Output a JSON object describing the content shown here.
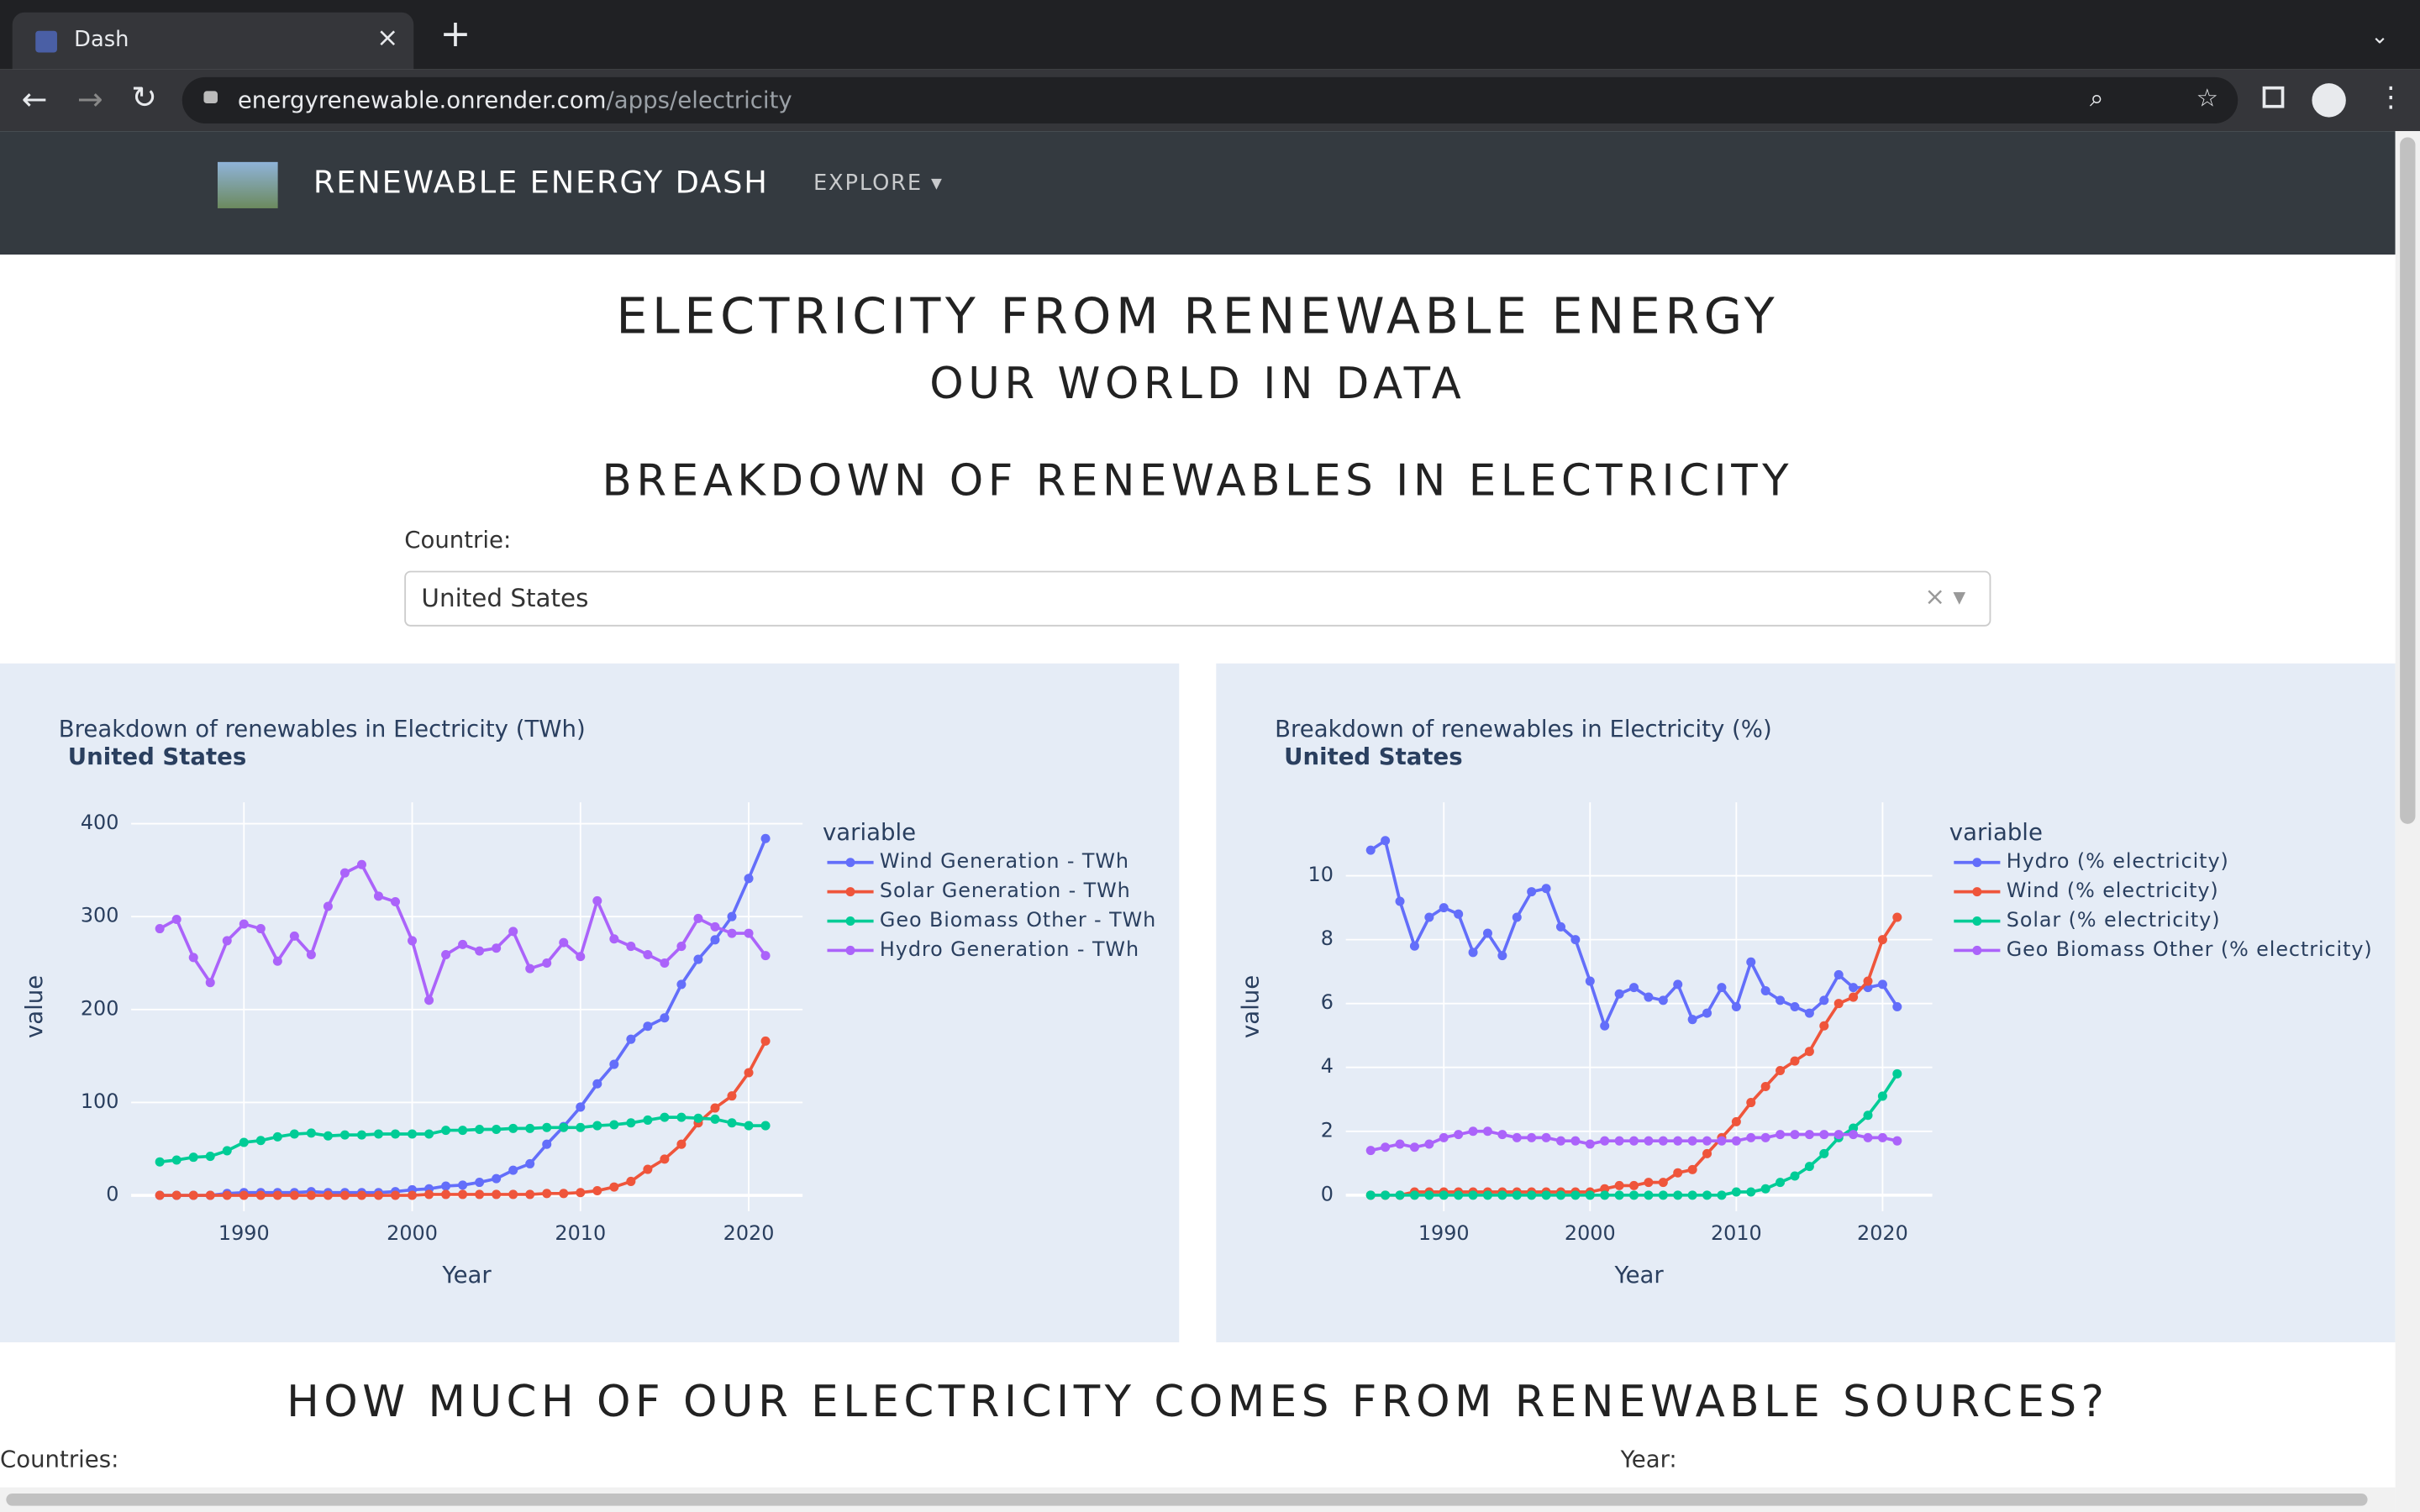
{
  "browser": {
    "tab_title": "Dash",
    "url_host": "energyrenewable.onrender.com",
    "url_path": "/apps/electricity"
  },
  "navbar": {
    "brand": "RENEWABLE ENERGY DASH",
    "menu": "EXPLORE"
  },
  "page": {
    "title": "ELECTRICITY FROM RENEWABLE ENERGY",
    "subtitle": "OUR WORLD IN DATA",
    "section_title": "BREAKDOWN OF RENEWABLES IN ELECTRICITY",
    "dropdown_label": "Countrie:",
    "dropdown_value": "United States",
    "section2_title": "HOW MUCH OF OUR ELECTRICITY COMES FROM RENEWABLE SOURCES?",
    "countries_label": "Countries:",
    "year_label": "Year:"
  },
  "chart_data": [
    {
      "type": "line",
      "title": "Breakdown of renewables in Electricity (TWh)",
      "subtitle": "United States",
      "x_label": "Year",
      "y_label": "value",
      "legend_title": "variable",
      "x": [
        1985,
        1986,
        1987,
        1988,
        1989,
        1990,
        1991,
        1992,
        1993,
        1994,
        1995,
        1996,
        1997,
        1998,
        1999,
        2000,
        2001,
        2002,
        2003,
        2004,
        2005,
        2006,
        2007,
        2008,
        2009,
        2010,
        2011,
        2012,
        2013,
        2014,
        2015,
        2016,
        2017,
        2018,
        2019,
        2020,
        2021
      ],
      "xlim": [
        1983.3,
        2023.2
      ],
      "xticks": [
        1990,
        2000,
        2010,
        2020
      ],
      "ylim": [
        -17,
        423
      ],
      "yticks": [
        0,
        100,
        200,
        300,
        400
      ],
      "grid": true,
      "series": [
        {
          "name": "Wind Generation - TWh",
          "color": "#636efa",
          "values": [
            0,
            0,
            0,
            0,
            2,
            3,
            3,
            3,
            3,
            4,
            3,
            3,
            3,
            3,
            4,
            6,
            7,
            10,
            11,
            14,
            18,
            27,
            34,
            55,
            74,
            95,
            120,
            141,
            168,
            182,
            191,
            227,
            254,
            275,
            300,
            341,
            384
          ]
        },
        {
          "name": "Solar Generation - TWh",
          "color": "#ef553b",
          "values": [
            0,
            0,
            0,
            0,
            0,
            0,
            0,
            0,
            0,
            0,
            0,
            0,
            0,
            0,
            0,
            0,
            1,
            1,
            1,
            1,
            1,
            1,
            1,
            2,
            2,
            3,
            5,
            9,
            15,
            28,
            39,
            55,
            78,
            94,
            107,
            132,
            166
          ]
        },
        {
          "name": "Geo Biomass Other - TWh",
          "color": "#00cc96",
          "values": [
            36,
            38,
            41,
            42,
            48,
            57,
            59,
            63,
            66,
            67,
            64,
            65,
            65,
            66,
            66,
            66,
            66,
            70,
            70,
            71,
            71,
            72,
            72,
            73,
            73,
            73,
            75,
            76,
            78,
            81,
            84,
            84,
            83,
            82,
            78,
            75,
            75
          ]
        },
        {
          "name": "Hydro Generation - TWh",
          "color": "#ab63fa",
          "values": [
            287,
            297,
            256,
            229,
            274,
            292,
            287,
            252,
            279,
            259,
            311,
            347,
            356,
            322,
            316,
            274,
            210,
            259,
            270,
            263,
            266,
            284,
            244,
            250,
            272,
            257,
            317,
            276,
            268,
            259,
            250,
            268,
            298,
            289,
            282,
            282,
            258
          ]
        }
      ]
    },
    {
      "type": "line",
      "title": "Breakdown of renewables in Electricity (%)",
      "subtitle": "United States",
      "x_label": "Year",
      "y_label": "value",
      "legend_title": "variable",
      "x": [
        1985,
        1986,
        1987,
        1988,
        1989,
        1990,
        1991,
        1992,
        1993,
        1994,
        1995,
        1996,
        1997,
        1998,
        1999,
        2000,
        2001,
        2002,
        2003,
        2004,
        2005,
        2006,
        2007,
        2008,
        2009,
        2010,
        2011,
        2012,
        2013,
        2014,
        2015,
        2016,
        2017,
        2018,
        2019,
        2020,
        2021
      ],
      "xlim": [
        1983.3,
        2023.4
      ],
      "xticks": [
        1990,
        2000,
        2010,
        2020
      ],
      "ylim": [
        -0.5,
        12.3
      ],
      "yticks": [
        0,
        2,
        4,
        6,
        8,
        10
      ],
      "grid": true,
      "series": [
        {
          "name": "Hydro (% electricity)",
          "color": "#636efa",
          "values": [
            10.8,
            11.1,
            9.2,
            7.8,
            8.7,
            9.0,
            8.8,
            7.6,
            8.2,
            7.5,
            8.7,
            9.5,
            9.6,
            8.4,
            8.0,
            6.7,
            5.3,
            6.3,
            6.5,
            6.2,
            6.1,
            6.6,
            5.5,
            5.7,
            6.5,
            5.9,
            7.3,
            6.4,
            6.1,
            5.9,
            5.7,
            6.1,
            6.9,
            6.5,
            6.5,
            6.6,
            5.9
          ]
        },
        {
          "name": "Wind (% electricity)",
          "color": "#ef553b",
          "values": [
            0,
            0,
            0,
            0.1,
            0.1,
            0.1,
            0.1,
            0.1,
            0.1,
            0.1,
            0.1,
            0.1,
            0.1,
            0.1,
            0.1,
            0.1,
            0.2,
            0.3,
            0.3,
            0.4,
            0.4,
            0.7,
            0.8,
            1.3,
            1.8,
            2.3,
            2.9,
            3.4,
            3.9,
            4.2,
            4.5,
            5.3,
            6.0,
            6.2,
            6.7,
            8.0,
            8.7
          ]
        },
        {
          "name": "Solar (% electricity)",
          "color": "#00cc96",
          "values": [
            0,
            0,
            0,
            0,
            0,
            0,
            0,
            0,
            0,
            0,
            0,
            0,
            0,
            0,
            0,
            0,
            0,
            0,
            0,
            0,
            0,
            0,
            0,
            0,
            0,
            0.1,
            0.1,
            0.2,
            0.4,
            0.6,
            0.9,
            1.3,
            1.8,
            2.1,
            2.5,
            3.1,
            3.8
          ]
        },
        {
          "name": "Geo Biomass Other (% electricity)",
          "color": "#ab63fa",
          "values": [
            1.4,
            1.5,
            1.6,
            1.5,
            1.6,
            1.8,
            1.9,
            2.0,
            2.0,
            1.9,
            1.8,
            1.8,
            1.8,
            1.7,
            1.7,
            1.6,
            1.7,
            1.7,
            1.7,
            1.7,
            1.7,
            1.7,
            1.7,
            1.7,
            1.7,
            1.7,
            1.8,
            1.8,
            1.9,
            1.9,
            1.9,
            1.9,
            1.9,
            1.9,
            1.8,
            1.8,
            1.7
          ]
        }
      ]
    }
  ]
}
